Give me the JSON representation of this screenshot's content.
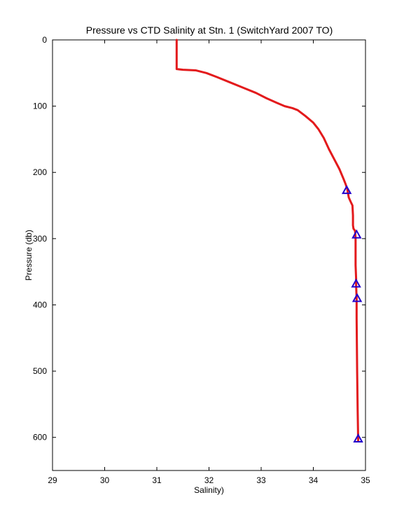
{
  "chart_data": {
    "type": "line",
    "title": "Pressure vs CTD Salinity at Stn. 1 (SwitchYard 2007 TO)",
    "xlabel": "Salinity)",
    "ylabel": "Pressure (db)",
    "xlim": [
      29,
      35
    ],
    "ylim": [
      650,
      0
    ],
    "y_reversed": true,
    "xticks": [
      "29",
      "30",
      "31",
      "32",
      "33",
      "34",
      "35"
    ],
    "yticks": [
      "0",
      "100",
      "200",
      "300",
      "400",
      "500",
      "600"
    ],
    "grid": false,
    "legend": "none",
    "series": [
      {
        "style": "line",
        "color": "#e31a1c",
        "x": [
          31.38,
          31.38,
          31.38,
          31.38,
          31.5,
          31.75,
          31.95,
          32.15,
          32.4,
          32.65,
          32.9,
          33.1,
          33.3,
          33.45,
          33.6,
          33.7,
          33.85,
          34.0,
          34.1,
          34.2,
          34.3,
          34.4,
          34.5,
          34.58,
          34.62,
          34.65,
          34.68,
          34.72,
          34.75,
          34.76,
          34.76,
          34.77,
          34.8,
          34.81,
          34.81,
          34.82,
          34.82,
          34.83,
          34.83,
          34.84,
          34.85,
          34.86
        ],
        "y": [
          0,
          20,
          40,
          44,
          45,
          46,
          50,
          56,
          64,
          72,
          80,
          88,
          95,
          100,
          103,
          106,
          115,
          125,
          135,
          148,
          165,
          180,
          195,
          210,
          218,
          225,
          238,
          245,
          250,
          265,
          280,
          285,
          288,
          300,
          340,
          360,
          370,
          390,
          420,
          500,
          560,
          605
        ]
      },
      {
        "style": "markers",
        "marker": "triangle",
        "color": "#2200cc",
        "x": [
          34.64,
          34.83,
          34.82,
          34.84,
          34.86
        ],
        "y": [
          227,
          294,
          368,
          390,
          602
        ]
      }
    ]
  }
}
